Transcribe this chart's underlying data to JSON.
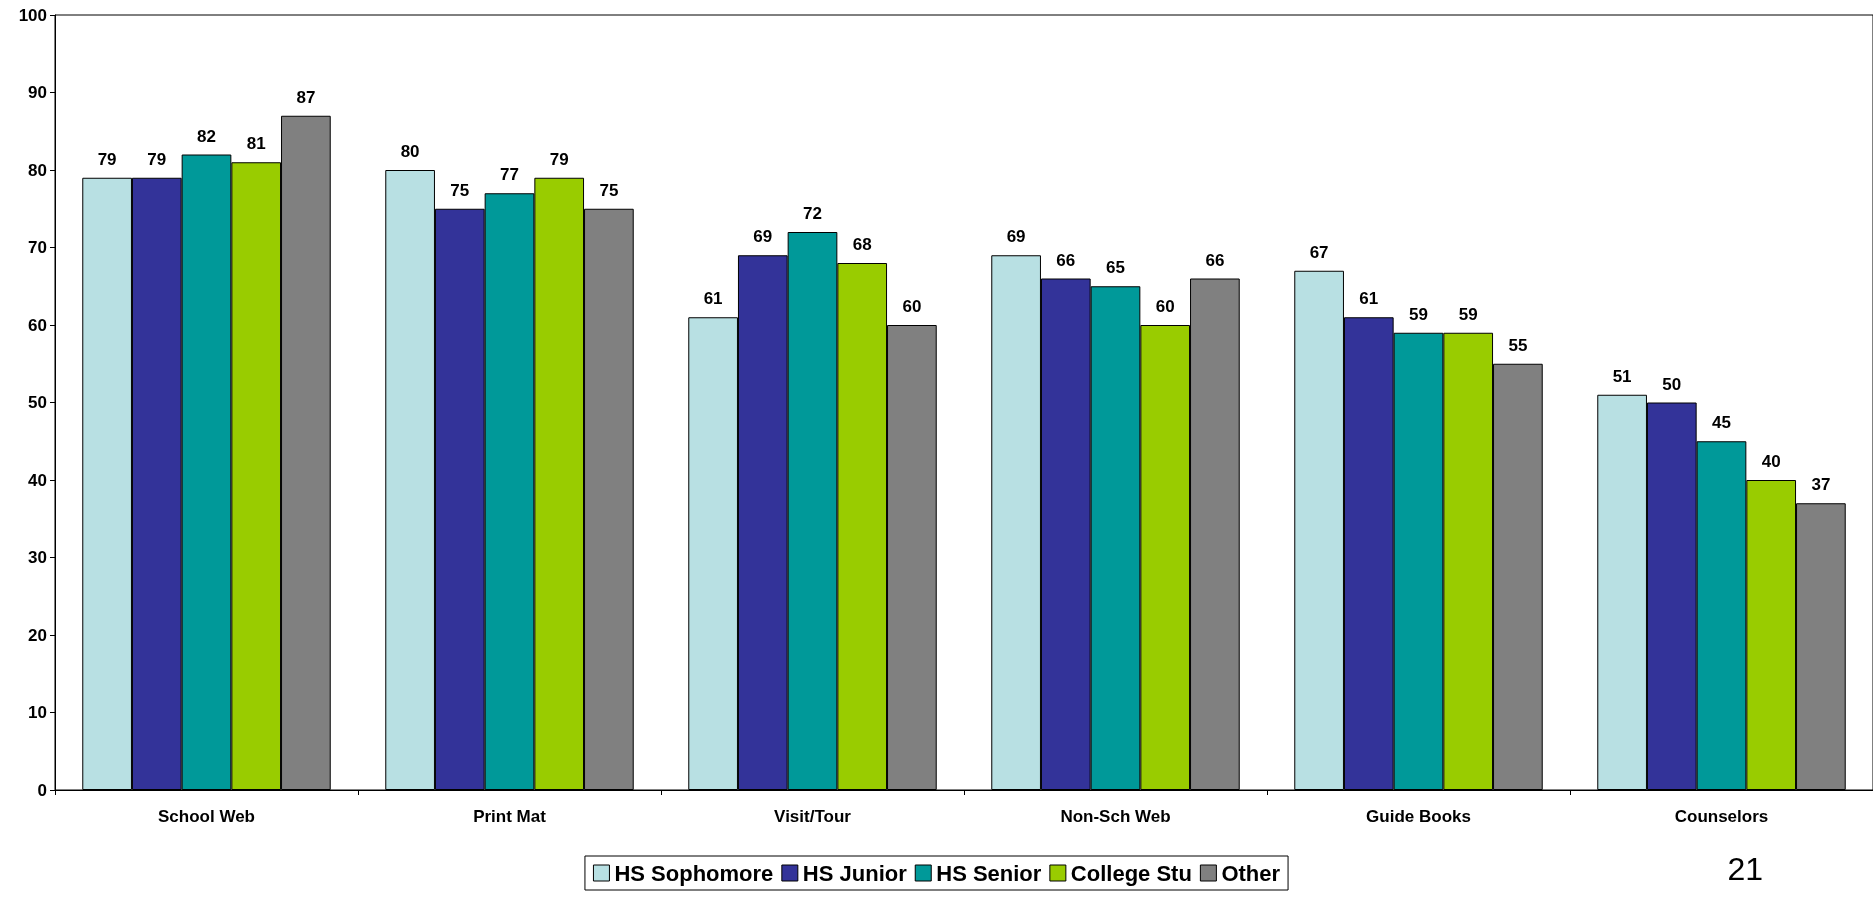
{
  "chart_data": {
    "type": "bar",
    "categories": [
      "School Web",
      "Print Mat",
      "Visit/Tour",
      "Non-Sch Web",
      "Guide Books",
      "Counselors"
    ],
    "series": [
      {
        "name": "HS Sophomore",
        "color": "#b8e0e3",
        "values": [
          79,
          80,
          61,
          69,
          67,
          51
        ]
      },
      {
        "name": "HS Junior",
        "color": "#333399",
        "values": [
          79,
          75,
          69,
          66,
          61,
          50
        ]
      },
      {
        "name": "HS Senior",
        "color": "#009999",
        "values": [
          82,
          77,
          72,
          65,
          59,
          45
        ]
      },
      {
        "name": "College Stu",
        "color": "#99cc00",
        "values": [
          81,
          79,
          68,
          60,
          59,
          40
        ]
      },
      {
        "name": "Other",
        "color": "#808080",
        "values": [
          87,
          75,
          60,
          66,
          55,
          37
        ]
      }
    ],
    "ylim": [
      0,
      100
    ],
    "yticks": [
      0,
      10,
      20,
      30,
      40,
      50,
      60,
      70,
      80,
      90,
      100
    ],
    "grid": false,
    "legend": "bottom",
    "data_labels": true,
    "annotations": [
      "21"
    ]
  }
}
